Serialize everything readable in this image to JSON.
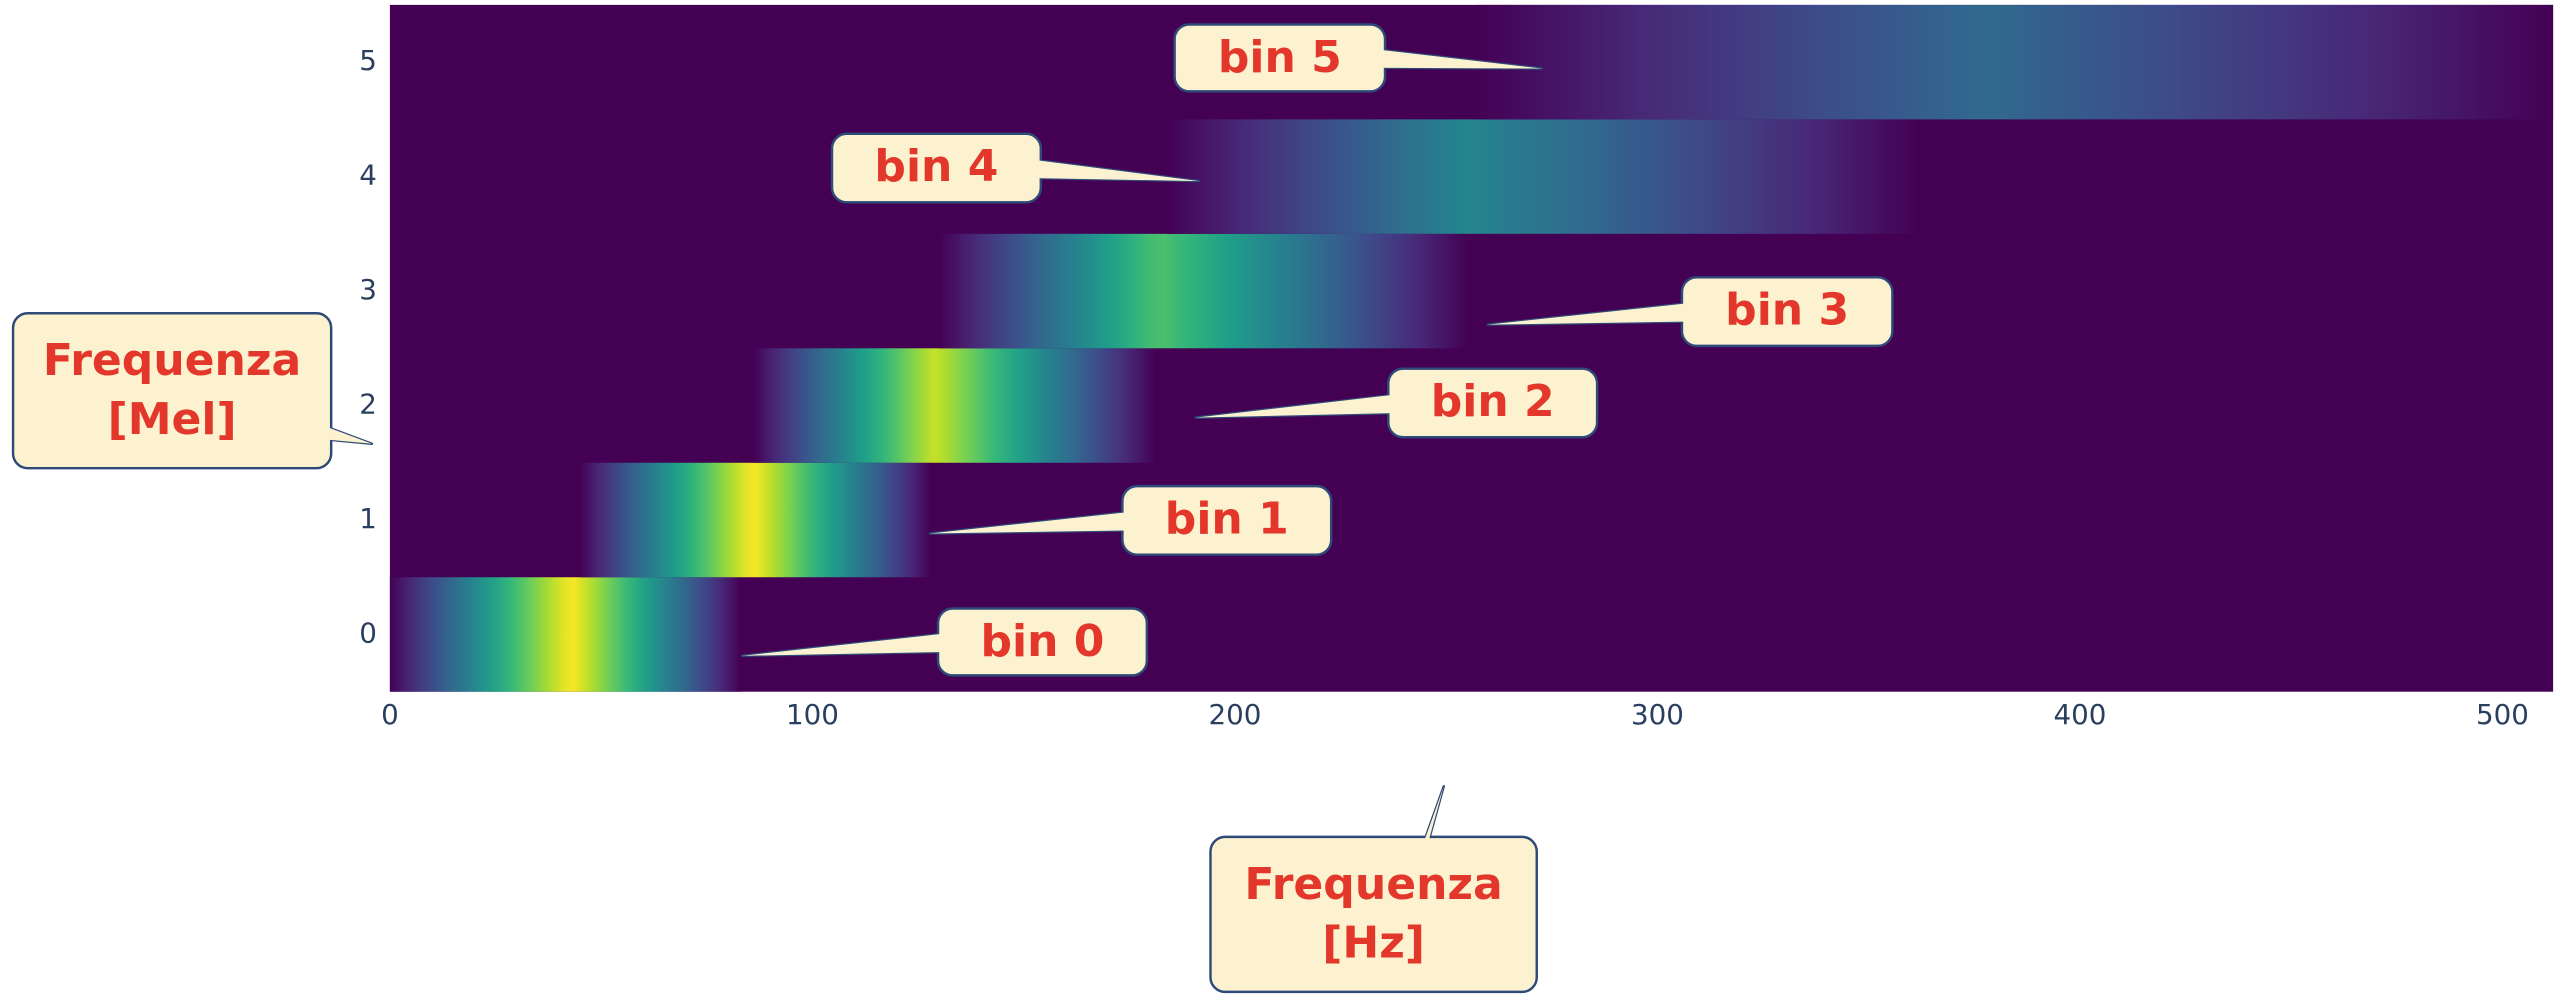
{
  "chart_data": {
    "type": "heatmap",
    "xlabel": "Frequenza [Hz]",
    "ylabel": "Frequenza [Mel]",
    "xlim": [
      0,
      512
    ],
    "ylim": [
      -0.5,
      5.5
    ],
    "xticks": [
      0,
      100,
      200,
      300,
      400,
      500
    ],
    "yticks": [
      0,
      1,
      2,
      3,
      4,
      5
    ],
    "zlim": [
      0,
      1
    ],
    "colorscale": "viridis",
    "series": [
      {
        "name": "bin 0",
        "x": [
          0,
          43,
          83
        ],
        "values": [
          0,
          1,
          0
        ]
      },
      {
        "name": "bin 1",
        "x": [
          45,
          86,
          128
        ],
        "values": [
          0,
          1,
          0
        ]
      },
      {
        "name": "bin 2",
        "x": [
          86,
          129,
          181
        ],
        "values": [
          0,
          0.92,
          0
        ]
      },
      {
        "name": "bin 3",
        "x": [
          130,
          182,
          255
        ],
        "values": [
          0,
          0.72,
          0
        ]
      },
      {
        "name": "bin 4",
        "x": [
          184,
          255,
          362
        ],
        "values": [
          0,
          0.46,
          0
        ]
      },
      {
        "name": "bin 5",
        "x": [
          257,
          377,
          512
        ],
        "values": [
          0,
          0.34,
          0
        ]
      }
    ]
  }
}
